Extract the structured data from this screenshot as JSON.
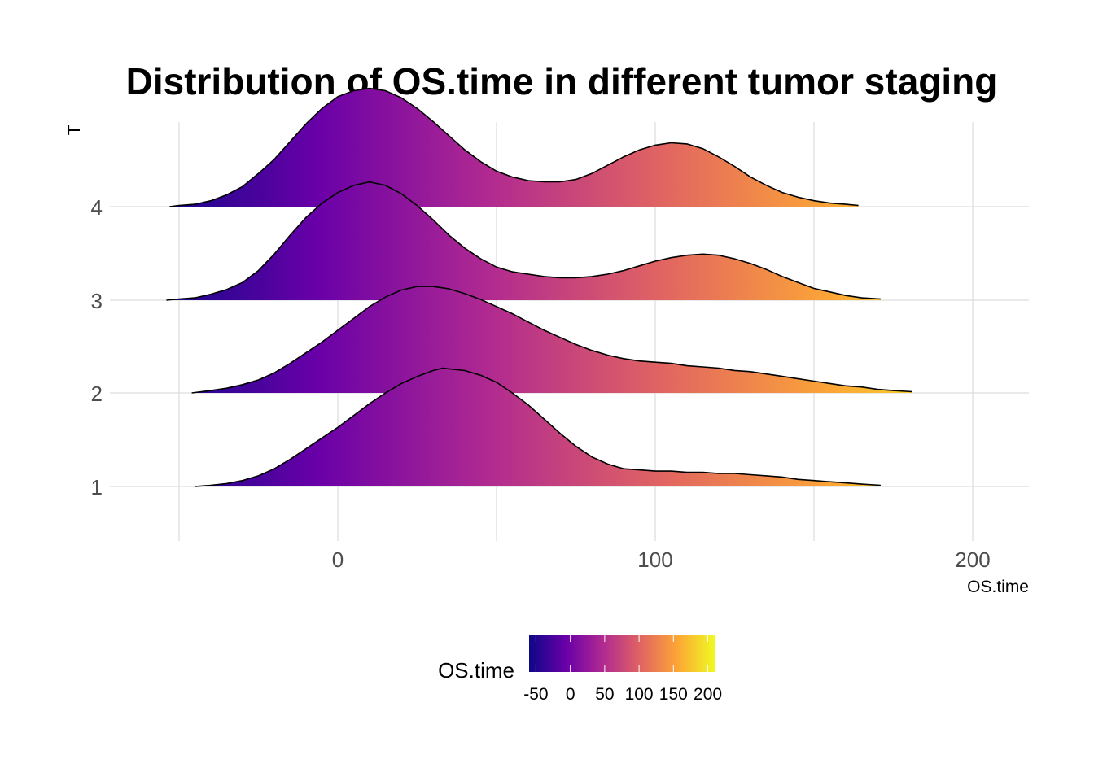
{
  "chart_data": {
    "type": "ridgeline",
    "title": "Distribution of OS.time in different tumor staging",
    "xlabel": "OS.time",
    "ylabel": "T",
    "xlim": [
      -50,
      218
    ],
    "x_ticks": [
      0,
      100,
      200
    ],
    "x_tick_labels": [
      "0",
      "100",
      "200"
    ],
    "categories": [
      "1",
      "2",
      "3",
      "4"
    ],
    "grid": true,
    "color_scale": {
      "name": "plasma",
      "stops": [
        "#0d0887",
        "#6a00a8",
        "#b12a90",
        "#e16462",
        "#fca636",
        "#f0f921"
      ]
    },
    "legend": {
      "title": "OS.time",
      "position": "bottom",
      "range": [
        -60,
        210
      ],
      "ticks": [
        -50,
        0,
        50,
        100,
        150,
        200
      ],
      "tick_labels": [
        "-50",
        "0",
        "50",
        "100",
        "150",
        "200"
      ]
    },
    "series": [
      {
        "category": "1",
        "points": [
          [
            -45,
            0.0
          ],
          [
            -40,
            0.01
          ],
          [
            -35,
            0.025
          ],
          [
            -30,
            0.05
          ],
          [
            -25,
            0.09
          ],
          [
            -20,
            0.15
          ],
          [
            -15,
            0.23
          ],
          [
            -10,
            0.32
          ],
          [
            -5,
            0.41
          ],
          [
            0,
            0.5
          ],
          [
            5,
            0.6
          ],
          [
            10,
            0.7
          ],
          [
            15,
            0.79
          ],
          [
            20,
            0.87
          ],
          [
            25,
            0.93
          ],
          [
            30,
            0.98
          ],
          [
            33,
            1.0
          ],
          [
            40,
            0.98
          ],
          [
            45,
            0.94
          ],
          [
            50,
            0.88
          ],
          [
            55,
            0.79
          ],
          [
            60,
            0.69
          ],
          [
            65,
            0.57
          ],
          [
            70,
            0.45
          ],
          [
            75,
            0.34
          ],
          [
            80,
            0.25
          ],
          [
            85,
            0.19
          ],
          [
            90,
            0.15
          ],
          [
            95,
            0.14
          ],
          [
            100,
            0.13
          ],
          [
            105,
            0.13
          ],
          [
            110,
            0.12
          ],
          [
            115,
            0.12
          ],
          [
            120,
            0.11
          ],
          [
            125,
            0.11
          ],
          [
            130,
            0.1
          ],
          [
            135,
            0.09
          ],
          [
            140,
            0.08
          ],
          [
            145,
            0.06
          ],
          [
            150,
            0.05
          ],
          [
            155,
            0.04
          ],
          [
            160,
            0.03
          ],
          [
            165,
            0.02
          ],
          [
            171,
            0.01
          ]
        ]
      },
      {
        "category": "2",
        "points": [
          [
            -46,
            0.0
          ],
          [
            -40,
            0.02
          ],
          [
            -35,
            0.04
          ],
          [
            -30,
            0.07
          ],
          [
            -25,
            0.11
          ],
          [
            -20,
            0.17
          ],
          [
            -15,
            0.25
          ],
          [
            -10,
            0.34
          ],
          [
            -5,
            0.43
          ],
          [
            0,
            0.53
          ],
          [
            5,
            0.63
          ],
          [
            10,
            0.73
          ],
          [
            15,
            0.81
          ],
          [
            20,
            0.87
          ],
          [
            25,
            0.9
          ],
          [
            30,
            0.9
          ],
          [
            35,
            0.88
          ],
          [
            40,
            0.84
          ],
          [
            45,
            0.79
          ],
          [
            50,
            0.73
          ],
          [
            55,
            0.67
          ],
          [
            60,
            0.6
          ],
          [
            65,
            0.53
          ],
          [
            70,
            0.47
          ],
          [
            75,
            0.41
          ],
          [
            80,
            0.36
          ],
          [
            85,
            0.32
          ],
          [
            90,
            0.29
          ],
          [
            95,
            0.27
          ],
          [
            100,
            0.26
          ],
          [
            105,
            0.25
          ],
          [
            110,
            0.23
          ],
          [
            115,
            0.22
          ],
          [
            120,
            0.21
          ],
          [
            125,
            0.19
          ],
          [
            130,
            0.18
          ],
          [
            135,
            0.16
          ],
          [
            140,
            0.14
          ],
          [
            145,
            0.12
          ],
          [
            150,
            0.1
          ],
          [
            155,
            0.08
          ],
          [
            160,
            0.06
          ],
          [
            165,
            0.05
          ],
          [
            170,
            0.03
          ],
          [
            175,
            0.02
          ],
          [
            181,
            0.01
          ]
        ]
      },
      {
        "category": "3",
        "points": [
          [
            -54,
            0.0
          ],
          [
            -50,
            0.01
          ],
          [
            -45,
            0.02
          ],
          [
            -40,
            0.05
          ],
          [
            -35,
            0.09
          ],
          [
            -30,
            0.15
          ],
          [
            -25,
            0.25
          ],
          [
            -20,
            0.39
          ],
          [
            -15,
            0.55
          ],
          [
            -10,
            0.7
          ],
          [
            -5,
            0.82
          ],
          [
            0,
            0.91
          ],
          [
            5,
            0.97
          ],
          [
            10,
            1.0
          ],
          [
            15,
            0.97
          ],
          [
            20,
            0.9
          ],
          [
            25,
            0.8
          ],
          [
            30,
            0.68
          ],
          [
            35,
            0.55
          ],
          [
            40,
            0.44
          ],
          [
            45,
            0.35
          ],
          [
            50,
            0.28
          ],
          [
            55,
            0.24
          ],
          [
            60,
            0.22
          ],
          [
            65,
            0.2
          ],
          [
            70,
            0.19
          ],
          [
            75,
            0.19
          ],
          [
            80,
            0.2
          ],
          [
            85,
            0.22
          ],
          [
            90,
            0.25
          ],
          [
            95,
            0.29
          ],
          [
            100,
            0.33
          ],
          [
            105,
            0.36
          ],
          [
            110,
            0.38
          ],
          [
            115,
            0.39
          ],
          [
            120,
            0.38
          ],
          [
            125,
            0.35
          ],
          [
            130,
            0.31
          ],
          [
            135,
            0.26
          ],
          [
            140,
            0.2
          ],
          [
            145,
            0.15
          ],
          [
            150,
            0.1
          ],
          [
            155,
            0.07
          ],
          [
            160,
            0.04
          ],
          [
            165,
            0.02
          ],
          [
            171,
            0.01
          ]
        ]
      },
      {
        "category": "4",
        "points": [
          [
            -53,
            0.0
          ],
          [
            -50,
            0.01
          ],
          [
            -45,
            0.02
          ],
          [
            -40,
            0.05
          ],
          [
            -35,
            0.1
          ],
          [
            -30,
            0.17
          ],
          [
            -25,
            0.28
          ],
          [
            -20,
            0.4
          ],
          [
            -15,
            0.55
          ],
          [
            -10,
            0.7
          ],
          [
            -5,
            0.83
          ],
          [
            0,
            0.93
          ],
          [
            5,
            0.98
          ],
          [
            10,
            1.0
          ],
          [
            15,
            0.98
          ],
          [
            20,
            0.92
          ],
          [
            25,
            0.83
          ],
          [
            30,
            0.72
          ],
          [
            35,
            0.6
          ],
          [
            40,
            0.48
          ],
          [
            45,
            0.38
          ],
          [
            50,
            0.3
          ],
          [
            55,
            0.25
          ],
          [
            60,
            0.22
          ],
          [
            65,
            0.21
          ],
          [
            70,
            0.21
          ],
          [
            75,
            0.23
          ],
          [
            80,
            0.28
          ],
          [
            85,
            0.35
          ],
          [
            90,
            0.42
          ],
          [
            95,
            0.48
          ],
          [
            100,
            0.52
          ],
          [
            105,
            0.54
          ],
          [
            110,
            0.53
          ],
          [
            115,
            0.49
          ],
          [
            120,
            0.42
          ],
          [
            125,
            0.34
          ],
          [
            130,
            0.25
          ],
          [
            135,
            0.18
          ],
          [
            140,
            0.12
          ],
          [
            145,
            0.08
          ],
          [
            150,
            0.05
          ],
          [
            155,
            0.03
          ],
          [
            160,
            0.02
          ],
          [
            164,
            0.01
          ]
        ]
      }
    ]
  }
}
